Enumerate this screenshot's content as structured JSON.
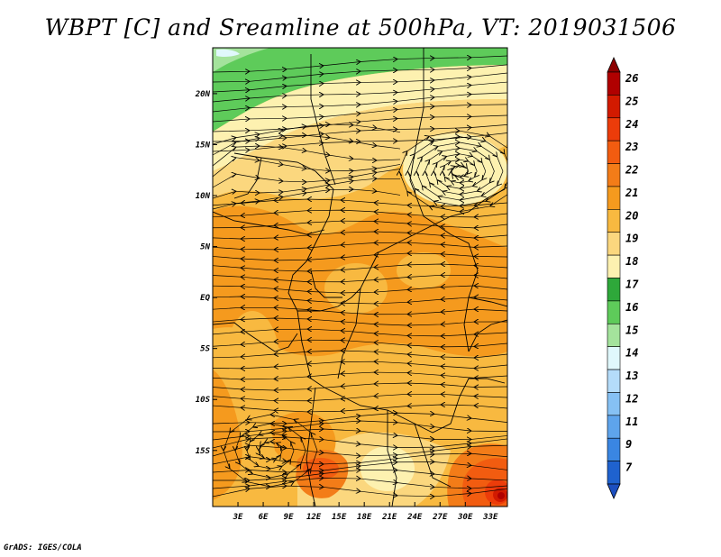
{
  "title": "WBPT [C] and Sreamline at 500hPa, VT: 2019031506",
  "credit": "GrADS: IGES/COLA",
  "map": {
    "variable": "WBPT [C]",
    "overlay": "Sreamline",
    "level": "500hPa",
    "valid_time": "2019031506",
    "lon_range": [
      0,
      35
    ],
    "lat_range": [
      -20.5,
      24.5
    ],
    "x_ticks": [
      "3E",
      "6E",
      "9E",
      "12E",
      "15E",
      "18E",
      "21E",
      "24E",
      "27E",
      "30E",
      "33E"
    ],
    "x_tick_values": [
      3,
      6,
      9,
      12,
      15,
      18,
      21,
      24,
      27,
      30,
      33
    ],
    "y_ticks": [
      "20N",
      "15N",
      "10N",
      "5N",
      "EQ",
      "5S",
      "10S",
      "15S"
    ],
    "y_tick_values": [
      20,
      15,
      10,
      5,
      0,
      -5,
      -10,
      -15
    ]
  },
  "colorbar": {
    "labels": [
      "26",
      "25",
      "24",
      "23",
      "22",
      "21",
      "20",
      "19",
      "18",
      "17",
      "16",
      "15",
      "14",
      "13",
      "12",
      "11",
      "9",
      "7"
    ],
    "colors": [
      "#b00000",
      "#d21a00",
      "#ec3c0a",
      "#f25c10",
      "#f37c18",
      "#f59a1e",
      "#f8b940",
      "#fbd77e",
      "#fdf1b0",
      "#2ea83a",
      "#5ecb5a",
      "#a4e39c",
      "#e0f8fc",
      "#b4dcfa",
      "#86c1f4",
      "#5ea4ec",
      "#3a86e2",
      "#1f62cf"
    ],
    "top_arrow_color": "#8c0000",
    "bottom_arrow_color": "#1c4fc0"
  }
}
